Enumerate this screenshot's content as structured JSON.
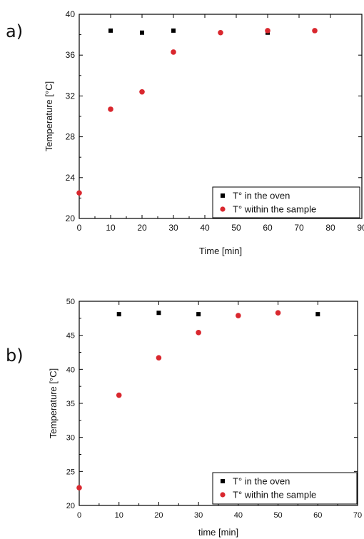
{
  "chart_data": [
    {
      "type": "scatter",
      "panel_label": "a)",
      "xlabel": "Time [min]",
      "ylabel": "Temperature  [°C]",
      "xlim": [
        0,
        90
      ],
      "ylim": [
        20,
        40
      ],
      "xticks": [
        0,
        10,
        20,
        30,
        40,
        50,
        60,
        70,
        80,
        90
      ],
      "yticks": [
        20,
        24,
        28,
        32,
        36,
        40
      ],
      "grid": false,
      "legend_position": "bottom-right",
      "series": [
        {
          "name": "T° in the oven",
          "marker": "square",
          "color": "#000000",
          "x": [
            10,
            20,
            30,
            60
          ],
          "y": [
            38.4,
            38.2,
            38.4,
            38.2
          ]
        },
        {
          "name": "T° within the sample",
          "marker": "circle",
          "color": "#d9272e",
          "x": [
            0,
            10,
            20,
            30,
            45,
            60,
            75
          ],
          "y": [
            22.5,
            30.7,
            32.4,
            36.3,
            38.2,
            38.4,
            38.4
          ]
        }
      ]
    },
    {
      "type": "scatter",
      "panel_label": "b)",
      "xlabel": "time [min]",
      "ylabel": "Temperature [°C]",
      "xlim": [
        0,
        70
      ],
      "ylim": [
        20,
        50
      ],
      "xticks": [
        0,
        10,
        20,
        30,
        40,
        50,
        60,
        70
      ],
      "yticks": [
        20,
        25,
        30,
        35,
        40,
        45,
        50
      ],
      "grid": false,
      "legend_position": "bottom-right",
      "series": [
        {
          "name": "T° in the oven",
          "marker": "square",
          "color": "#000000",
          "x": [
            10,
            20,
            30,
            60
          ],
          "y": [
            48.1,
            48.3,
            48.1,
            48.1
          ]
        },
        {
          "name": "T° within the sample",
          "marker": "circle",
          "color": "#d9272e",
          "x": [
            0,
            10,
            20,
            30,
            40,
            50
          ],
          "y": [
            22.6,
            36.2,
            41.7,
            45.4,
            47.9,
            48.3
          ]
        }
      ]
    }
  ]
}
